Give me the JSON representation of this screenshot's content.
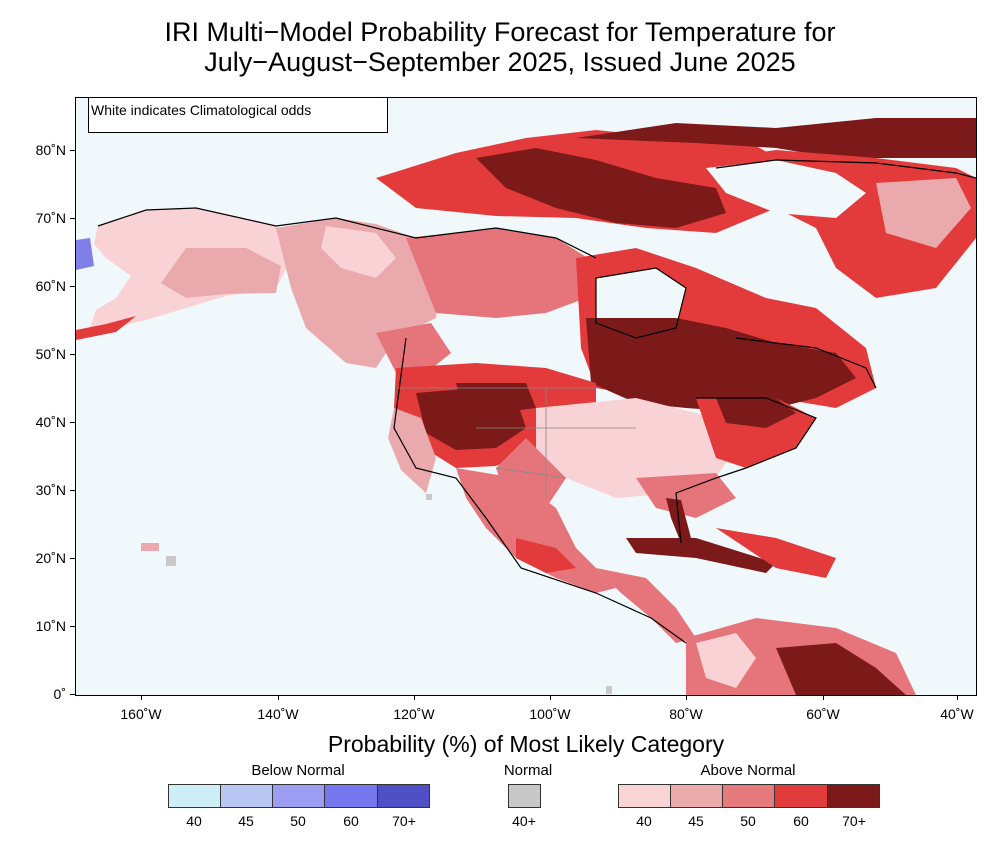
{
  "title": {
    "line1": "IRI Multi−Model Probability Forecast for Temperature for",
    "line2": "July−August−September 2025, Issued June 2025"
  },
  "map": {
    "note": "White indicates Climatological odds",
    "lat_labels": [
      "80˚N",
      "70˚N",
      "60˚N",
      "50˚N",
      "40˚N",
      "30˚N",
      "20˚N",
      "10˚N",
      "0˚"
    ],
    "lon_labels": [
      "160˚W",
      "140˚W",
      "120˚W",
      "100˚W",
      "80˚W",
      "60˚W",
      "40˚W"
    ],
    "colors": {
      "background": "#f0f8fc",
      "above_40": "#f8d2d4",
      "above_45": "#eaaaad",
      "above_50": "#e6757b",
      "above_60": "#e33b3b",
      "above_70": "#7c1a1a",
      "normal": "#c8c8c8",
      "below_40": "#b3e2f0"
    }
  },
  "legend": {
    "title": "Probability (%) of Most Likely Category",
    "below": {
      "label": "Below Normal",
      "levels": [
        "40",
        "45",
        "50",
        "60",
        "70+"
      ],
      "colors": [
        "#cdeef6",
        "#b8c8f2",
        "#9c9ef2",
        "#7676ee",
        "#5050c6"
      ]
    },
    "normal": {
      "label": "Normal",
      "levels": [
        "40+"
      ],
      "colors": [
        "#c8c8c8"
      ]
    },
    "above": {
      "label": "Above Normal",
      "levels": [
        "40",
        "45",
        "50",
        "60",
        "70+"
      ],
      "colors": [
        "#f8d4d4",
        "#eaaaaa",
        "#e67a7c",
        "#e23c3c",
        "#7c1a1a"
      ]
    }
  }
}
